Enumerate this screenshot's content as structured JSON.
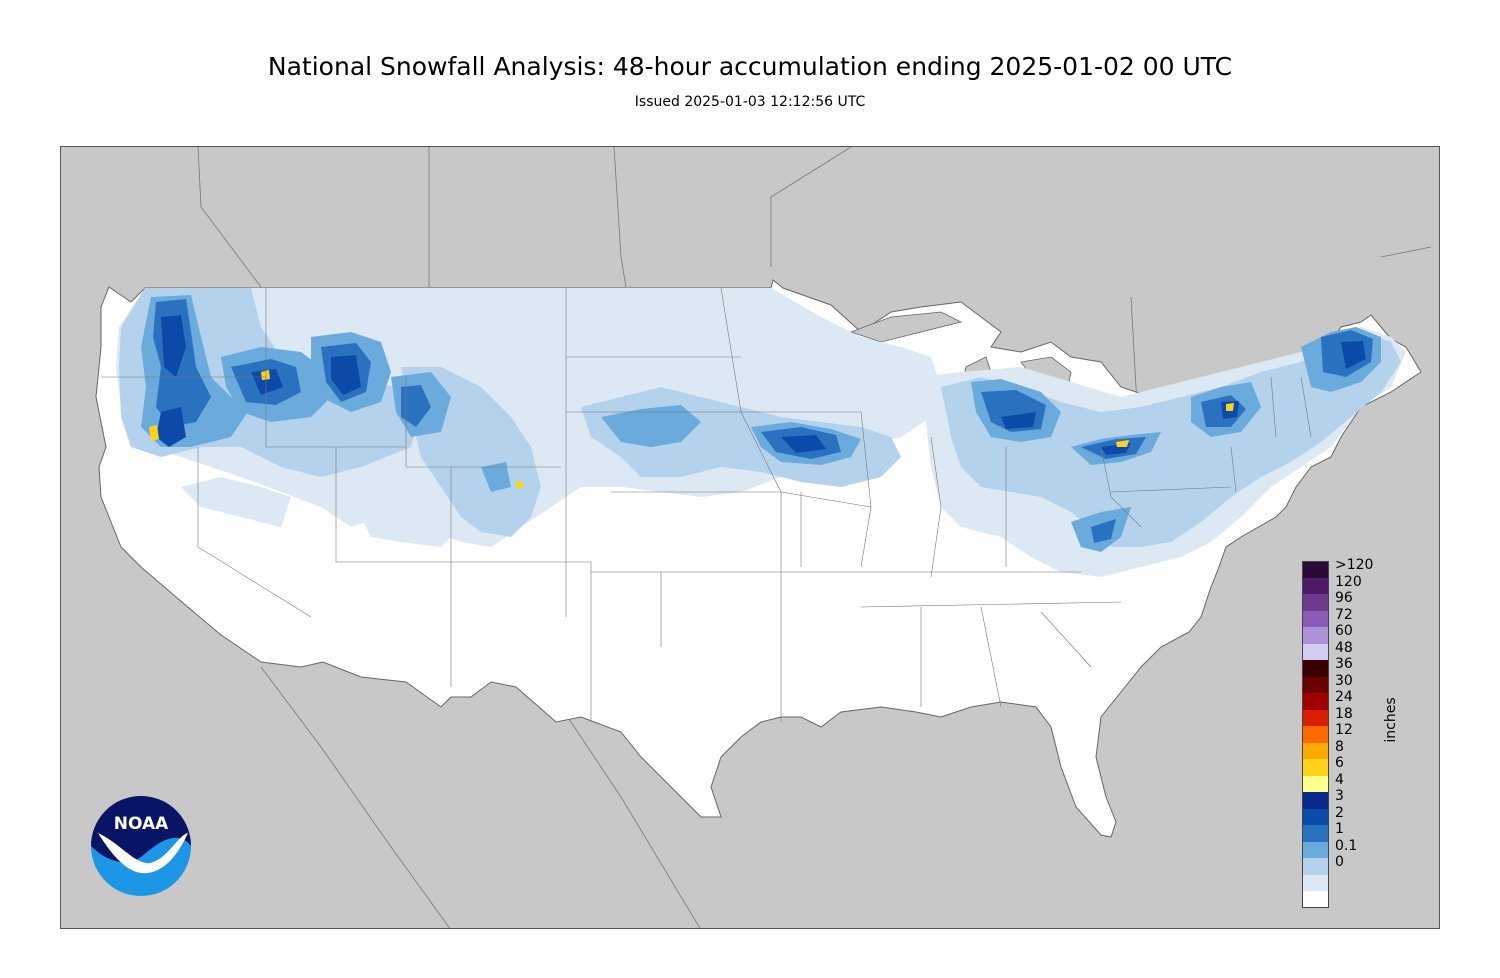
{
  "title": "National Snowfall Analysis: 48-hour accumulation ending 2025-01-02 00 UTC",
  "subtitle": "Issued 2025-01-03 12:12:56 UTC",
  "legend": {
    "units": "inches",
    "bins": [
      {
        "label": ">120",
        "color": "#2a0a36"
      },
      {
        "label": "120",
        "color": "#4e1a66"
      },
      {
        "label": "96",
        "color": "#6e3a90"
      },
      {
        "label": "72",
        "color": "#8a5cb8"
      },
      {
        "label": "60",
        "color": "#ac90d8"
      },
      {
        "label": "48",
        "color": "#d2ccf4"
      },
      {
        "label": "36",
        "color": "#3a0000"
      },
      {
        "label": "30",
        "color": "#6a0000"
      },
      {
        "label": "24",
        "color": "#a00000"
      },
      {
        "label": "18",
        "color": "#d82000"
      },
      {
        "label": "12",
        "color": "#ff6a00"
      },
      {
        "label": "8",
        "color": "#ffaa00"
      },
      {
        "label": "6",
        "color": "#ffd21a"
      },
      {
        "label": "4",
        "color": "#ffff8c"
      },
      {
        "label": "3",
        "color": "#072a8c"
      },
      {
        "label": "2",
        "color": "#0b4aa8"
      },
      {
        "label": "1",
        "color": "#2a72c0"
      },
      {
        "label": "0.1",
        "color": "#6aaadc"
      },
      {
        "label": "0",
        "color": "#b4d2ec"
      }
    ],
    "extra_bins": [
      {
        "color": "#dce9f5"
      },
      {
        "color": "#ffffff"
      }
    ]
  },
  "map": {
    "land_color": "#c8c8c8",
    "conus_color": "#ffffff",
    "snow_colors": {
      "light": "#dce9f5",
      "lt": "#b4d2ec",
      "med": "#6aaadc",
      "mod": "#2a72c0",
      "heavy": "#0b4aa8",
      "vheavy": "#072a8c",
      "yellow": "#ffd21a"
    }
  },
  "logo": {
    "text": "NOAA",
    "top_color": "#0a1464",
    "bottom_color": "#1e96e6"
  }
}
